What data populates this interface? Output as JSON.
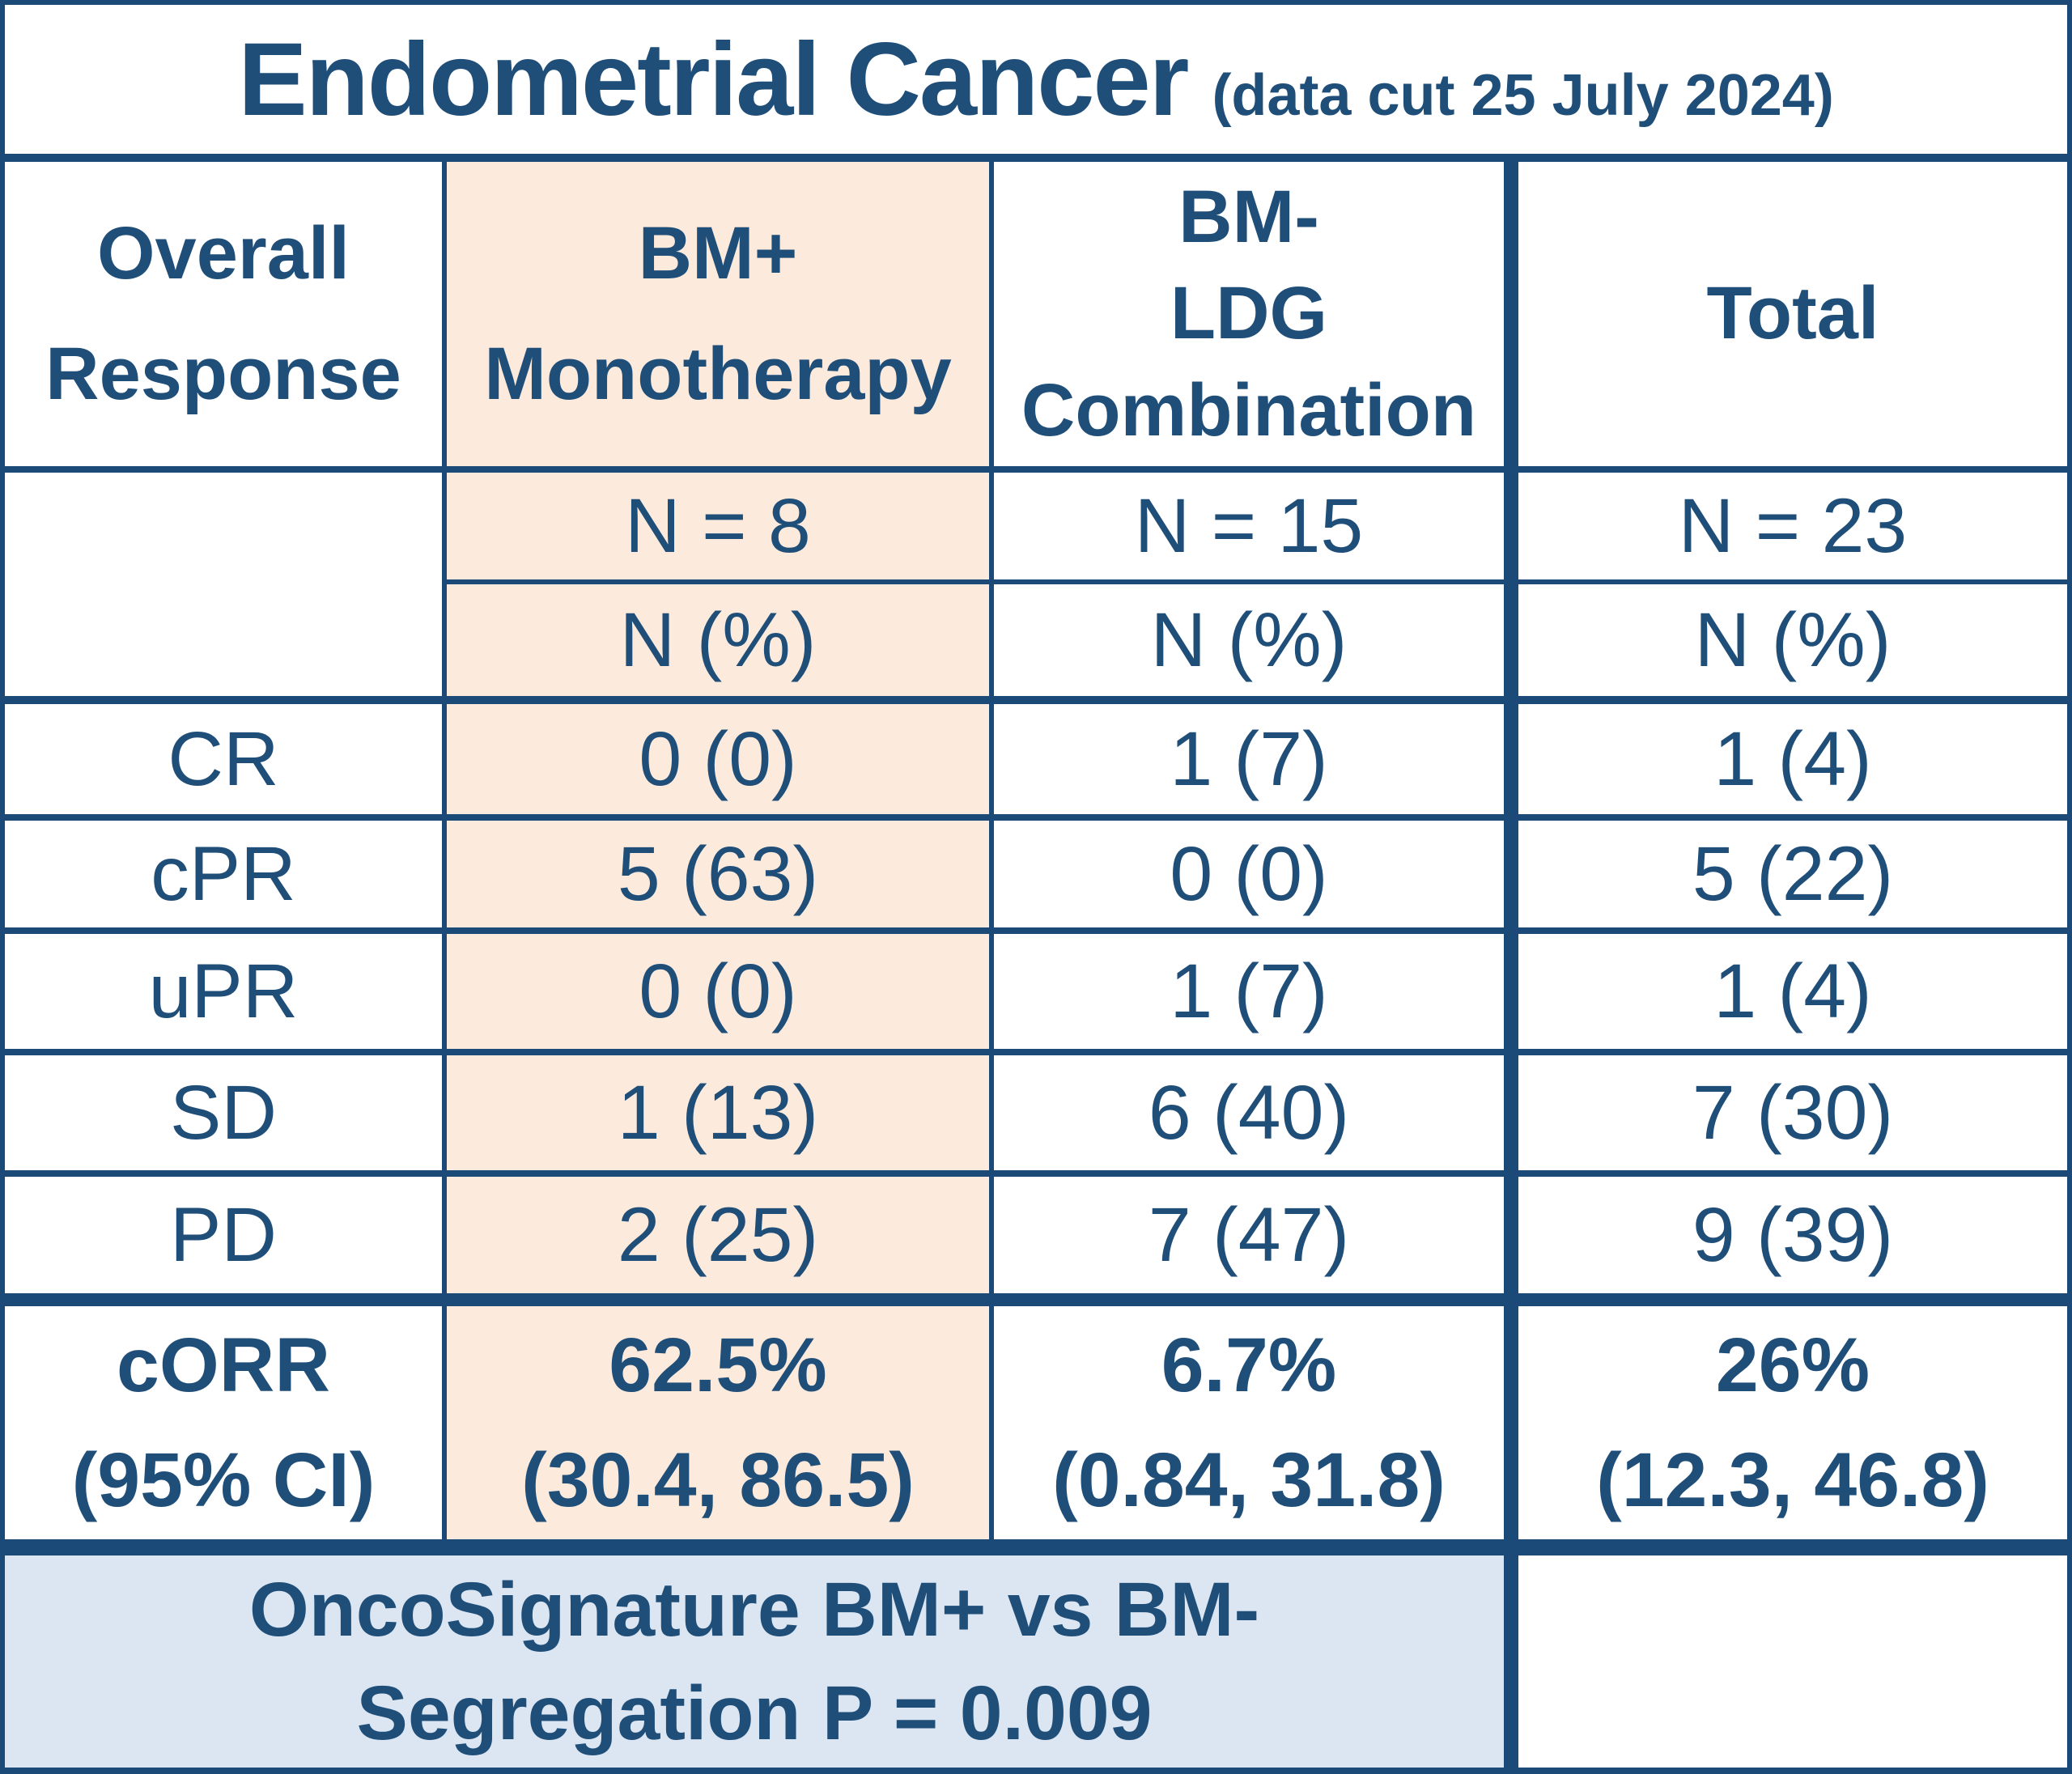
{
  "colors": {
    "text": "#1F4E79",
    "border": "#1B4A78",
    "highlight_column_bg": "#FCEADC",
    "footnote_bg": "#DCE6F2",
    "cell_bg": "#FFFFFF"
  },
  "chart_data": {
    "type": "table",
    "title": "Endometrial Cancer",
    "title_note": "(data cut 25 July 2024)",
    "header": {
      "col1": "Overall\nResponse",
      "col2": "BM+\nMonotherapy",
      "col3": "BM-\nLDG\nCombination",
      "col4": "Total"
    },
    "n_row": {
      "bm_plus": "N = 8",
      "bm_minus": "N = 15",
      "total": "N = 23"
    },
    "unit_row": {
      "bm_plus": "N (%)",
      "bm_minus": "N (%)",
      "total": "N (%)"
    },
    "rows": [
      {
        "label": "CR",
        "bm_plus": "0 (0)",
        "bm_minus": "1 (7)",
        "total": "1 (4)"
      },
      {
        "label": "cPR",
        "bm_plus": "5 (63)",
        "bm_minus": "0 (0)",
        "total": "5 (22)"
      },
      {
        "label": "uPR",
        "bm_plus": "0 (0)",
        "bm_minus": "1 (7)",
        "total": "1 (4)"
      },
      {
        "label": "SD",
        "bm_plus": "1 (13)",
        "bm_minus": "6 (40)",
        "total": "7 (30)"
      },
      {
        "label": "PD",
        "bm_plus": "2 (25)",
        "bm_minus": "7 (47)",
        "total": "9 (39)"
      }
    ],
    "corr_row": {
      "label": "cORR\n(95% CI)",
      "bm_plus": "62.5%\n(30.4, 86.5)",
      "bm_minus": "6.7%\n(0.84, 31.8)",
      "total": "26%\n(12.3, 46.8)"
    },
    "footnote": "OncoSignature BM+ vs BM-\nSegregation P = 0.009"
  }
}
